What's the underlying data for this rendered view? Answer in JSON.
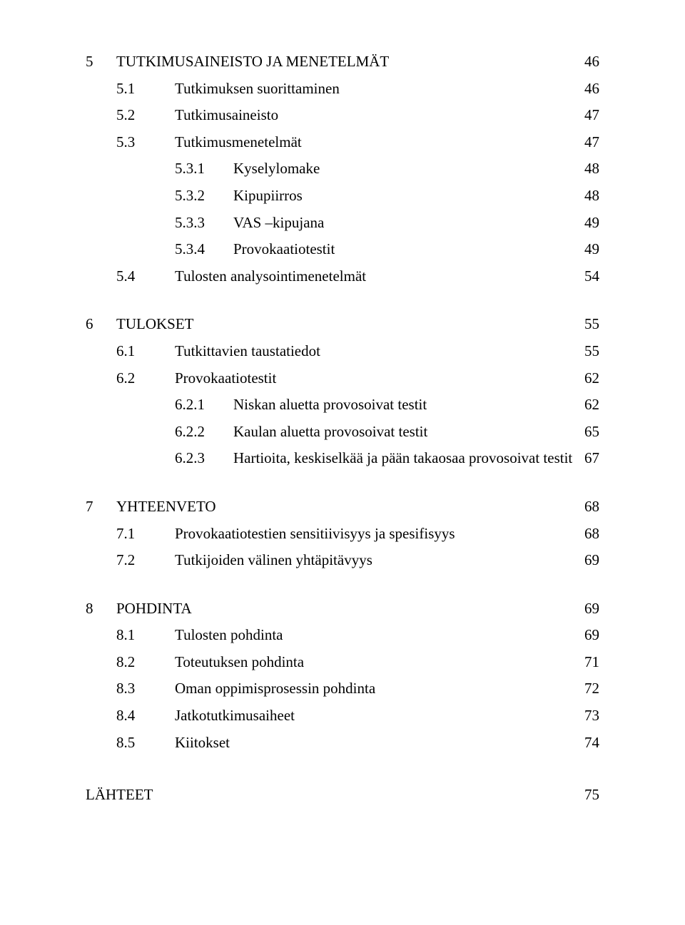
{
  "toc": [
    {
      "level": 0,
      "num": "5",
      "text": "TUTKIMUSAINEISTO JA MENETELMÄT",
      "page": "46",
      "gap": false
    },
    {
      "level": 1,
      "num": "5.1",
      "text": "Tutkimuksen suorittaminen",
      "page": "46",
      "gap": false
    },
    {
      "level": 1,
      "num": "5.2",
      "text": "Tutkimusaineisto",
      "page": "47",
      "gap": false
    },
    {
      "level": 1,
      "num": "5.3",
      "text": "Tutkimusmenetelmät",
      "page": "47",
      "gap": false
    },
    {
      "level": 2,
      "num": "5.3.1",
      "text": "Kyselylomake",
      "page": "48",
      "gap": false
    },
    {
      "level": 2,
      "num": "5.3.2",
      "text": "Kipupiirros",
      "page": "48",
      "gap": false
    },
    {
      "level": 2,
      "num": "5.3.3",
      "text": "VAS –kipujana",
      "page": "49",
      "gap": false
    },
    {
      "level": 2,
      "num": "5.3.4",
      "text": "Provokaatiotestit",
      "page": "49",
      "gap": false
    },
    {
      "level": 1,
      "num": "5.4",
      "text": "Tulosten analysointimenetelmät",
      "page": "54",
      "gap": false
    },
    {
      "level": 0,
      "num": "6",
      "text": "TULOKSET",
      "page": "55",
      "gap": true
    },
    {
      "level": 1,
      "num": "6.1",
      "text": "Tutkittavien taustatiedot",
      "page": "55",
      "gap": false
    },
    {
      "level": 1,
      "num": "6.2",
      "text": "Provokaatiotestit",
      "page": "62",
      "gap": false
    },
    {
      "level": 2,
      "num": "6.2.1",
      "text": "Niskan aluetta provosoivat testit",
      "page": "62",
      "gap": false
    },
    {
      "level": 2,
      "num": "6.2.2",
      "text": "Kaulan aluetta provosoivat testit",
      "page": "65",
      "gap": false
    },
    {
      "level": 2,
      "num": "6.2.3",
      "text": "Hartioita, keskiselkää ja pään takaosaa provosoivat testit",
      "page": "67",
      "gap": false
    },
    {
      "level": 0,
      "num": "7",
      "text": "YHTEENVETO",
      "page": "68",
      "gap": true
    },
    {
      "level": 1,
      "num": "7.1",
      "text": "Provokaatiotestien sensitiivisyys ja spesifisyys",
      "page": "68",
      "gap": false
    },
    {
      "level": 1,
      "num": "7.2",
      "text": "Tutkijoiden välinen yhtäpitävyys",
      "page": "69",
      "gap": false
    },
    {
      "level": 0,
      "num": "8",
      "text": "POHDINTA",
      "page": "69",
      "gap": true
    },
    {
      "level": 1,
      "num": "8.1",
      "text": "Tulosten pohdinta",
      "page": "69",
      "gap": false
    },
    {
      "level": 1,
      "num": "8.2",
      "text": "Toteutuksen pohdinta",
      "page": "71",
      "gap": false
    },
    {
      "level": 1,
      "num": "8.3",
      "text": "Oman oppimisprosessin pohdinta",
      "page": "72",
      "gap": false
    },
    {
      "level": 1,
      "num": "8.4",
      "text": "Jatkotutkimusaiheet",
      "page": "73",
      "gap": false
    },
    {
      "level": 1,
      "num": "8.5",
      "text": "Kiitokset",
      "page": "74",
      "gap": false
    }
  ],
  "lahteet": {
    "text": "LÄHTEET",
    "page": "75"
  }
}
